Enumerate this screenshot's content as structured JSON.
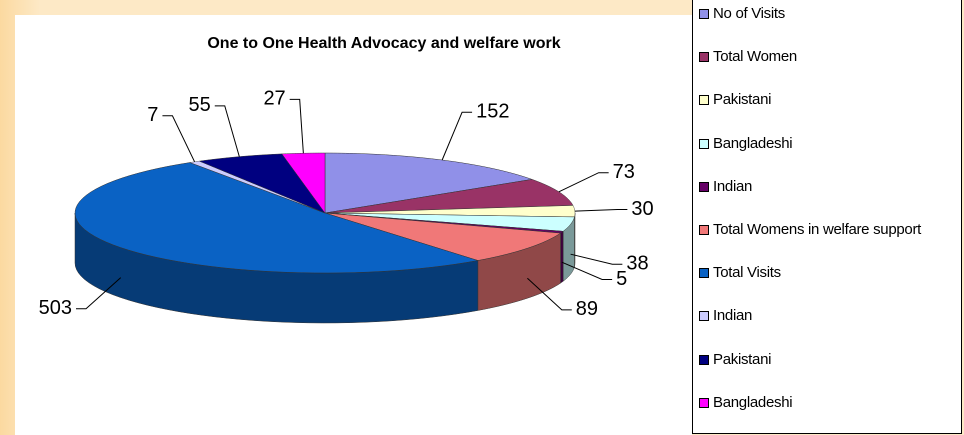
{
  "chart_data": {
    "type": "pie",
    "title": "One to One Health Advocacy and welfare work",
    "categories": [
      "No of Visits",
      "Total Women",
      "Pakistani",
      "Bangladeshi",
      "Indian",
      "Total Womens in welfare support",
      "Total Visits",
      "Indian",
      "Pakistani",
      "Bangladeshi"
    ],
    "values": [
      152,
      73,
      30,
      38,
      5,
      89,
      503,
      7,
      55,
      27
    ],
    "colors": [
      "#9090e8",
      "#993366",
      "#ffffcc",
      "#ccffff",
      "#660066",
      "#f07878",
      "#0a62c4",
      "#ccccff",
      "#000080",
      "#ff00ff"
    ],
    "legend": "right"
  }
}
